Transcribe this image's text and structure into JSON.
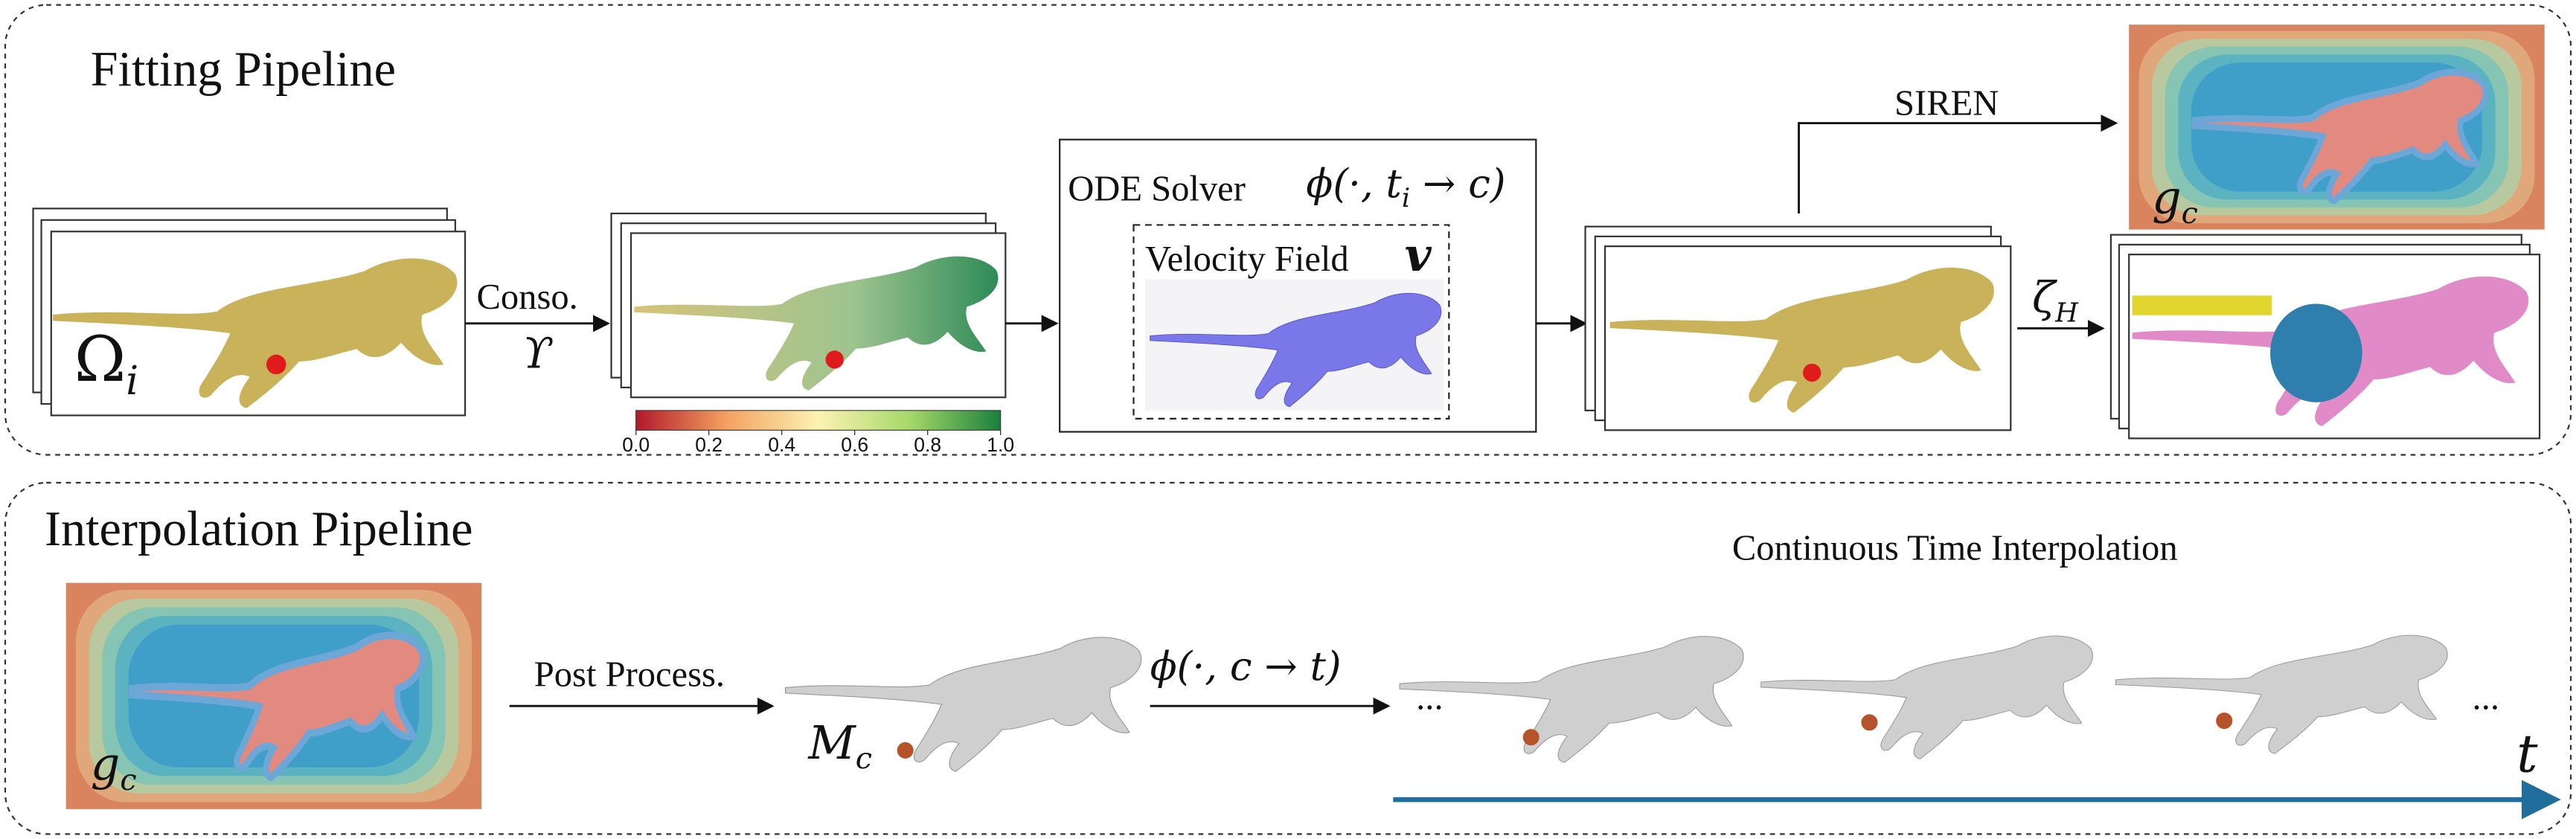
{
  "fitting": {
    "title": "Fitting Pipeline",
    "input_label": {
      "base": "Ω",
      "sub": "i"
    },
    "conso_label": "Conso.",
    "conso_symbol": "ϒ",
    "colorbar": {
      "ticks": [
        {
          "value": 0,
          "label": "0.0"
        },
        {
          "value": 0.2,
          "label": "0.2"
        },
        {
          "value": 0.4,
          "label": "0.4"
        },
        {
          "value": 0.6,
          "label": "0.6"
        },
        {
          "value": 0.8,
          "label": "0.8"
        },
        {
          "value": 1,
          "label": "1.0"
        }
      ]
    },
    "ode": {
      "title": "ODE Solver",
      "map": {
        "pre": "ϕ(·, t",
        "sub": "i",
        "post": " → c)"
      },
      "field_label": "Velocity Field",
      "field_symbol": "v"
    },
    "siren_label": "SIREN",
    "sdf_label": {
      "base": "g",
      "sub": "c"
    },
    "seg_label": {
      "base": "ζ",
      "sub": "H"
    }
  },
  "interpolation": {
    "title": "Interpolation Pipeline",
    "sdf_label": {
      "base": "g",
      "sub": "c"
    },
    "post_label": "Post Process.",
    "mesh_label": {
      "base": "M",
      "sub": "c"
    },
    "map": "ϕ(·, c → t)",
    "ellipsis_left": "...",
    "ellipsis_right": "...",
    "continuous_label": "Continuous Time Interpolation",
    "time_symbol": "t"
  }
}
